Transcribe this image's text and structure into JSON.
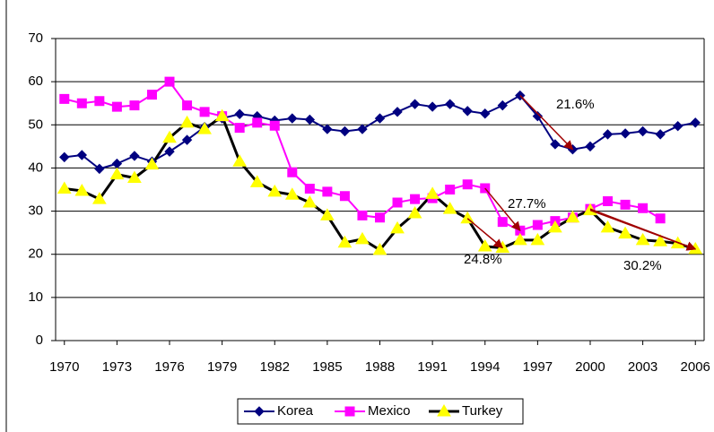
{
  "chart_data": {
    "type": "line",
    "x": [
      1970,
      1971,
      1972,
      1973,
      1974,
      1975,
      1976,
      1977,
      1978,
      1979,
      1980,
      1981,
      1982,
      1983,
      1984,
      1985,
      1986,
      1987,
      1988,
      1989,
      1990,
      1991,
      1992,
      1993,
      1994,
      1995,
      1996,
      1997,
      1998,
      1999,
      2000,
      2001,
      2002,
      2003,
      2004,
      2005,
      2006
    ],
    "series": [
      {
        "name": "Korea",
        "color": "#000080",
        "marker": "diamond",
        "values": [
          42.5,
          43,
          39.8,
          41,
          42.8,
          41.5,
          43.8,
          46.5,
          49.5,
          51.5,
          52.5,
          52,
          51,
          51.5,
          51.2,
          49,
          48.5,
          49,
          51.5,
          53,
          54.8,
          54.2,
          54.8,
          53.2,
          52.6,
          54.5,
          56.8,
          52,
          45.5,
          44.3,
          45,
          47.8,
          48,
          48.5,
          47.8,
          49.7,
          50.5
        ]
      },
      {
        "name": "Mexico",
        "color": "#ff00ff",
        "marker": "square",
        "values": [
          56,
          55,
          55.5,
          54.2,
          54.5,
          57,
          60,
          54.5,
          53,
          52,
          49.3,
          50.5,
          49.8,
          39,
          35.2,
          34.5,
          33.5,
          29,
          28.5,
          32,
          32.8,
          33,
          35,
          36.2,
          35.3,
          27.5,
          25.5,
          26.8,
          27.7,
          28.5,
          30.5,
          32.3,
          31.5,
          30.7,
          28.3,
          null,
          null
        ]
      },
      {
        "name": "Turkey",
        "color": "#000000",
        "marker": "triangle",
        "marker_color": "#ffff00",
        "values": [
          35.2,
          34.7,
          32.8,
          38.5,
          37.7,
          40.8,
          47,
          50.5,
          49,
          52,
          41.5,
          36.7,
          34.5,
          33.8,
          32,
          29,
          22.7,
          23.5,
          21,
          26,
          29.5,
          34,
          30.5,
          28.3,
          21.8,
          21.5,
          23.3,
          23.3,
          26.2,
          28.5,
          30.2,
          26.2,
          24.8,
          23.3,
          23,
          22.5,
          21.2
        ]
      }
    ],
    "xlim": [
      1969.5,
      2006.5
    ],
    "xticks": [
      1970,
      1973,
      1976,
      1979,
      1982,
      1985,
      1988,
      1991,
      1994,
      1997,
      2000,
      2003,
      2006
    ],
    "ylim": [
      0,
      70
    ],
    "yticks": [
      0,
      10,
      20,
      30,
      40,
      50,
      60,
      70
    ],
    "grid": true,
    "legend": "bottom",
    "annotations": [
      "21.6%",
      "27.7%",
      "24.8%",
      "30.2%"
    ],
    "annotation_color": "#ff0000"
  }
}
